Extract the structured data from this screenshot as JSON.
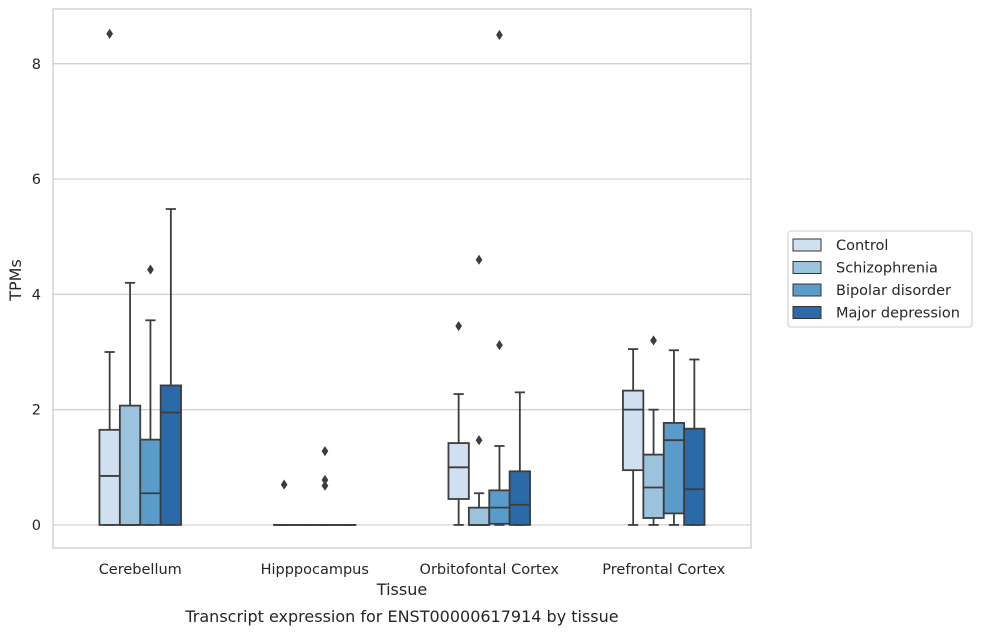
{
  "caption": "Transcript expression for ENST00000617914 by tissue",
  "chart_data": {
    "type": "box",
    "xlabel": "Tissue",
    "ylabel": "TPMs",
    "ylim": [
      -0.4,
      8.95
    ],
    "y_ticks": [
      0,
      2,
      4,
      6,
      8
    ],
    "grid": "horizontal",
    "legend_position": "right",
    "categories": [
      "Cerebellum",
      "Hipppocampus",
      "Orbitofontal Cortex",
      "Prefrontal Cortex"
    ],
    "series": [
      {
        "name": "Control",
        "color": "#d0e0f0",
        "boxes": [
          {
            "min": 0,
            "q1": 0,
            "median": 0.85,
            "q3": 1.65,
            "max": 3.0,
            "outliers": [
              8.52
            ]
          },
          {
            "min": 0,
            "q1": 0,
            "median": 0,
            "q3": 0,
            "max": 0,
            "outliers": [
              0.7
            ]
          },
          {
            "min": 0,
            "q1": 0.45,
            "median": 1.0,
            "q3": 1.42,
            "max": 2.27,
            "outliers": [
              3.45
            ]
          },
          {
            "min": 0,
            "q1": 0.95,
            "median": 2.0,
            "q3": 2.33,
            "max": 3.05,
            "outliers": []
          }
        ]
      },
      {
        "name": "Schizophrenia",
        "color": "#9cc3dd",
        "boxes": [
          {
            "min": 0,
            "q1": 0,
            "median": 0,
            "q3": 2.07,
            "max": 4.2,
            "outliers": []
          },
          {
            "min": 0,
            "q1": 0,
            "median": 0,
            "q3": 0,
            "max": 0,
            "outliers": []
          },
          {
            "min": 0,
            "q1": 0,
            "median": 0,
            "q3": 0.3,
            "max": 0.55,
            "outliers": [
              1.47,
              4.6
            ]
          },
          {
            "min": 0,
            "q1": 0.12,
            "median": 0.65,
            "q3": 1.22,
            "max": 2.0,
            "outliers": [
              3.2
            ]
          }
        ]
      },
      {
        "name": "Bipolar disorder",
        "color": "#5a9bc9",
        "boxes": [
          {
            "min": 0,
            "q1": 0,
            "median": 0.55,
            "q3": 1.48,
            "max": 3.55,
            "outliers": [
              4.43
            ]
          },
          {
            "min": 0,
            "q1": 0,
            "median": 0,
            "q3": 0,
            "max": 0,
            "outliers": [
              0.68,
              0.78,
              1.28
            ]
          },
          {
            "min": 0,
            "q1": 0.02,
            "median": 0.3,
            "q3": 0.6,
            "max": 1.37,
            "outliers": [
              3.12,
              8.5
            ]
          },
          {
            "min": 0,
            "q1": 0.2,
            "median": 1.47,
            "q3": 1.77,
            "max": 3.03,
            "outliers": []
          }
        ]
      },
      {
        "name": "Major depression",
        "color": "#2b6aa8",
        "boxes": [
          {
            "min": 0,
            "q1": 0,
            "median": 1.95,
            "q3": 2.42,
            "max": 5.48,
            "outliers": []
          },
          {
            "min": 0,
            "q1": 0,
            "median": 0,
            "q3": 0,
            "max": 0,
            "outliers": []
          },
          {
            "min": 0,
            "q1": 0,
            "median": 0.35,
            "q3": 0.93,
            "max": 2.3,
            "outliers": []
          },
          {
            "min": 0,
            "q1": 0,
            "median": 0.62,
            "q3": 1.67,
            "max": 2.87,
            "outliers": []
          }
        ]
      }
    ]
  }
}
